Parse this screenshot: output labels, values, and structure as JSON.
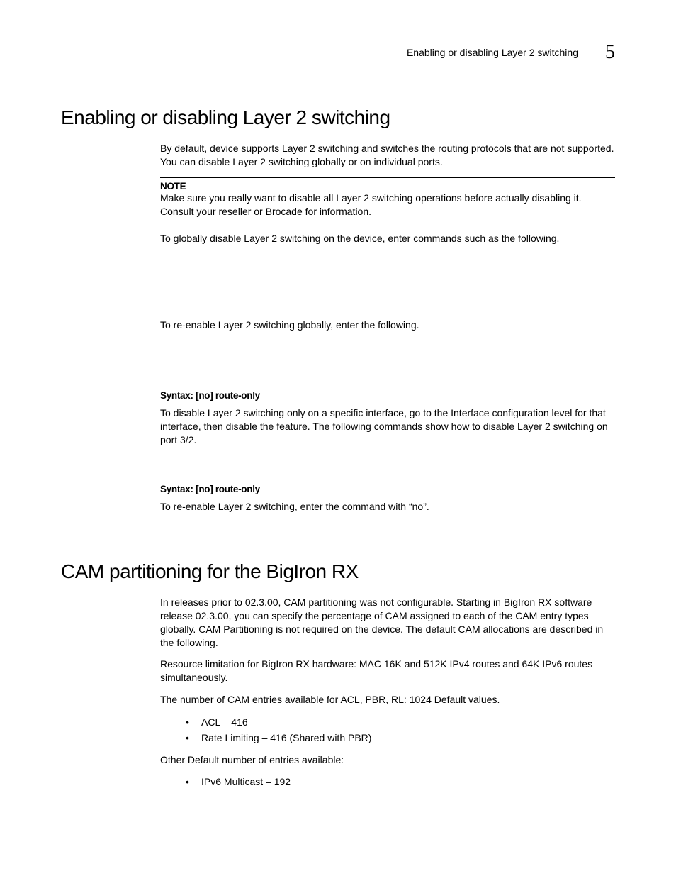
{
  "header": {
    "running_title": "Enabling or disabling Layer 2 switching",
    "chapter_number": "5"
  },
  "section1": {
    "title": "Enabling or disabling Layer 2 switching",
    "intro": "By default, device supports Layer 2 switching and switches the routing protocols that are not supported. You can disable Layer 2 switching globally or on individual ports.",
    "note_label": "NOTE",
    "note_text": "Make sure you really want to disable all Layer 2 switching operations before actually disabling it. Consult your reseller or Brocade for information.",
    "p1": "To globally disable Layer 2 switching on the device, enter commands such as the following.",
    "p2": "To re-enable Layer 2 switching globally, enter the following.",
    "syntax1": "Syntax:  [no] route-only",
    "p3": "To disable Layer 2 switching only on a specific interface, go to the Interface configuration level for that interface, then disable the feature.  The following commands show how to disable Layer 2 switching on port 3/2.",
    "syntax2": "Syntax:  [no] route-only",
    "p4": "To re-enable Layer 2 switching, enter the command with “no”."
  },
  "section2": {
    "title": "CAM partitioning for the BigIron RX",
    "p1": "In releases prior to 02.3.00, CAM partitioning was not configurable. Starting in BigIron RX software release 02.3.00, you can specify the percentage of CAM assigned to each of the CAM entry types globally. CAM Partitioning is not required on the device. The default CAM allocations are described in the following.",
    "p2": "Resource limitation for BigIron RX hardware: MAC 16K and 512K IPv4 routes and 64K IPv6 routes simultaneously.",
    "p3": "The number of CAM entries available for ACL, PBR, RL: 1024 Default values.",
    "list1": {
      "i0": "ACL – 416",
      "i1": "Rate Limiting – 416 (Shared with PBR)"
    },
    "p4": "Other Default number of entries available:",
    "list2": {
      "i0": "IPv6 Multicast – 192"
    }
  }
}
